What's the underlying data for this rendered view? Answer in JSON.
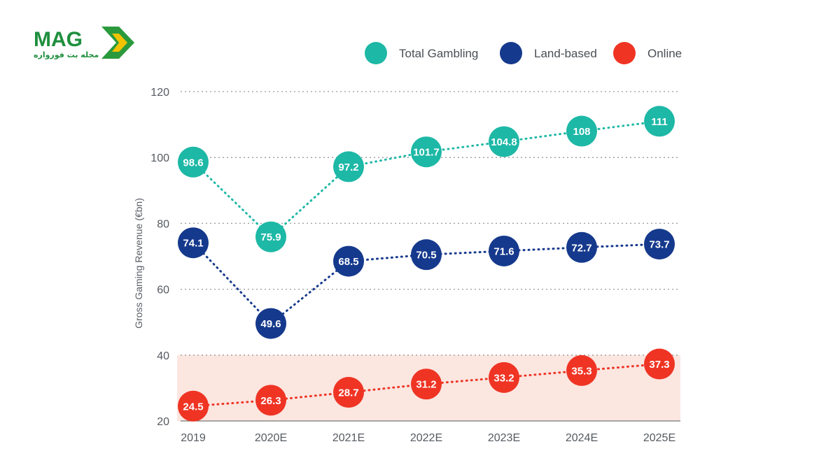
{
  "logo": {
    "text": "MAG",
    "subtitle": "مجله بت فورواره"
  },
  "colors": {
    "total": "#1db8a6",
    "land": "#15398c",
    "online": "#ef3424",
    "band": "#fbe6e0",
    "grid": "#9a9a9a"
  },
  "chart_data": {
    "type": "line",
    "title": "",
    "xlabel": "",
    "ylabel": "Gross Gaming Revenue (€bn)",
    "ylim": [
      20,
      120
    ],
    "yticks": [
      "20",
      "40",
      "60",
      "80",
      "100",
      "120"
    ],
    "categories": [
      "2019",
      "2020E",
      "2021E",
      "2022E",
      "2023E",
      "2024E",
      "2025E"
    ],
    "legend_position": "top-right",
    "shaded_band": [
      20,
      40
    ],
    "series": [
      {
        "name": "Total Gambling",
        "values": [
          98.6,
          75.9,
          97.2,
          101.7,
          104.8,
          108,
          111
        ],
        "labels": [
          "98.6",
          "75.9",
          "97.2",
          "101.7",
          "104.8",
          "108",
          "111"
        ]
      },
      {
        "name": "Land-based",
        "values": [
          74.1,
          49.6,
          68.5,
          70.5,
          71.6,
          72.7,
          73.7
        ],
        "labels": [
          "74.1",
          "49.6",
          "68.5",
          "70.5",
          "71.6",
          "72.7",
          "73.7"
        ]
      },
      {
        "name": "Online",
        "values": [
          24.5,
          26.3,
          28.7,
          31.2,
          33.2,
          35.3,
          37.3
        ],
        "labels": [
          "24.5",
          "26.3",
          "28.7",
          "31.2",
          "33.2",
          "35.3",
          "37.3"
        ]
      }
    ]
  }
}
